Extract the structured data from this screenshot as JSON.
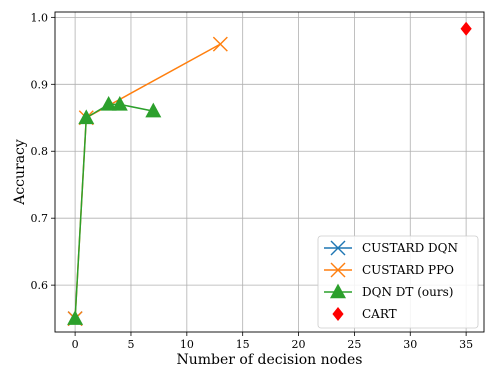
{
  "chart_data": {
    "type": "line",
    "title": "",
    "xlabel": "Number of decision nodes",
    "ylabel": "Accuracy",
    "xlim": [
      -1.8,
      36.6
    ],
    "ylim": [
      0.53,
      1.008
    ],
    "xticks": [
      0,
      5,
      10,
      15,
      20,
      25,
      30,
      35
    ],
    "yticks": [
      0.6,
      0.7,
      0.8,
      0.9,
      1.0
    ],
    "xtick_labels": [
      "0",
      "5",
      "10",
      "15",
      "20",
      "25",
      "30",
      "35"
    ],
    "ytick_labels": [
      "0.6",
      "0.7",
      "0.8",
      "0.9",
      "1.0"
    ],
    "grid": true,
    "legend_position": "bottom-right",
    "series": [
      {
        "name": "CUSTARD DQN",
        "color": "#1f77b4",
        "marker": "x",
        "line": true,
        "x": [
          0
        ],
        "y": [
          0.55
        ]
      },
      {
        "name": "CUSTARD PPO",
        "color": "#ff7f0e",
        "marker": "x",
        "line": true,
        "x": [
          0,
          1,
          13
        ],
        "y": [
          0.55,
          0.85,
          0.96
        ]
      },
      {
        "name": "DQN DT (ours)",
        "color": "#2ca02c",
        "marker": "triangle",
        "line": true,
        "x": [
          0,
          1,
          3,
          4,
          7
        ],
        "y": [
          0.55,
          0.85,
          0.87,
          0.87,
          0.86
        ]
      },
      {
        "name": "CART",
        "color": "#ff0000",
        "marker": "diamond",
        "line": false,
        "x": [
          35
        ],
        "y": [
          0.983
        ]
      }
    ]
  }
}
